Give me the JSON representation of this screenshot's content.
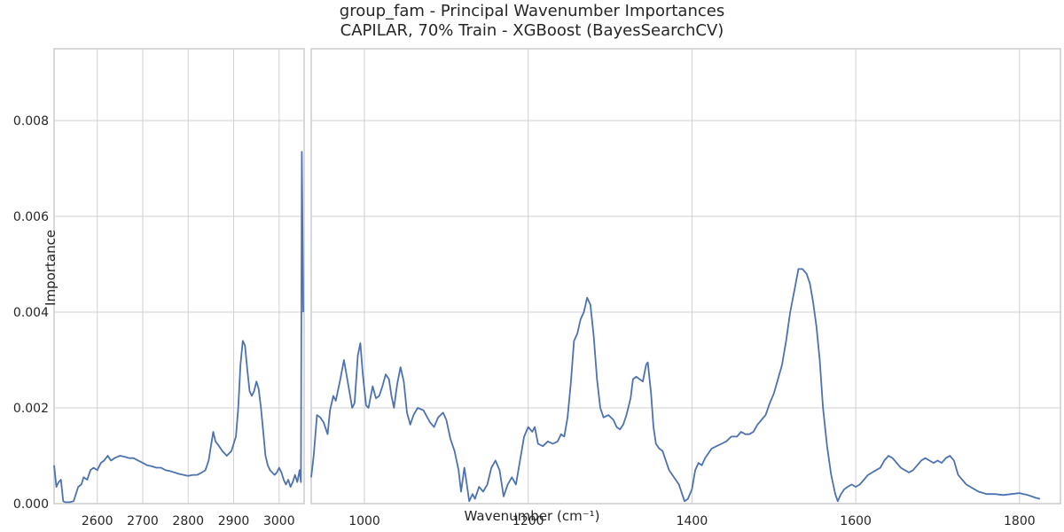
{
  "chart_data": {
    "type": "line",
    "title": "group_fam - Principal Wavenumber Importances",
    "subtitle": "CAPILAR, 70% Train - XGBoost (BayesSearchCV)",
    "xlabel": "Wavenumber (cm⁻¹)",
    "ylabel": "Importance",
    "ylim": [
      0,
      0.0095
    ],
    "grid": true,
    "line_color": "#4c72b0",
    "y_ticks": [
      "0.000",
      "0.002",
      "0.004",
      "0.006",
      "0.008"
    ],
    "panels": [
      {
        "xlim": [
          2505,
          3055
        ],
        "x_ticks": [
          "2600",
          "2700",
          "2800",
          "2900",
          "3000"
        ],
        "points": [
          [
            2505,
            0.0008
          ],
          [
            2510,
            0.00035
          ],
          [
            2515,
            0.00045
          ],
          [
            2520,
            0.0005
          ],
          [
            2525,
            5e-05
          ],
          [
            2530,
            3e-05
          ],
          [
            2540,
            3e-05
          ],
          [
            2548,
            5e-05
          ],
          [
            2558,
            0.00035
          ],
          [
            2565,
            0.0004
          ],
          [
            2570,
            0.00055
          ],
          [
            2578,
            0.0005
          ],
          [
            2585,
            0.0007
          ],
          [
            2592,
            0.00075
          ],
          [
            2600,
            0.0007
          ],
          [
            2608,
            0.00085
          ],
          [
            2615,
            0.0009
          ],
          [
            2623,
            0.001
          ],
          [
            2630,
            0.0009
          ],
          [
            2638,
            0.00095
          ],
          [
            2645,
            0.00098
          ],
          [
            2650,
            0.001
          ],
          [
            2660,
            0.00098
          ],
          [
            2670,
            0.00095
          ],
          [
            2680,
            0.00095
          ],
          [
            2690,
            0.0009
          ],
          [
            2700,
            0.00085
          ],
          [
            2710,
            0.0008
          ],
          [
            2720,
            0.00078
          ],
          [
            2730,
            0.00075
          ],
          [
            2740,
            0.00075
          ],
          [
            2750,
            0.0007
          ],
          [
            2760,
            0.00068
          ],
          [
            2770,
            0.00065
          ],
          [
            2780,
            0.00062
          ],
          [
            2790,
            0.0006
          ],
          [
            2800,
            0.00058
          ],
          [
            2810,
            0.0006
          ],
          [
            2820,
            0.0006
          ],
          [
            2830,
            0.00065
          ],
          [
            2838,
            0.0007
          ],
          [
            2845,
            0.0009
          ],
          [
            2850,
            0.0012
          ],
          [
            2855,
            0.0015
          ],
          [
            2860,
            0.0013
          ],
          [
            2868,
            0.0012
          ],
          [
            2875,
            0.0011
          ],
          [
            2885,
            0.001
          ],
          [
            2895,
            0.0011
          ],
          [
            2900,
            0.00125
          ],
          [
            2905,
            0.0014
          ],
          [
            2910,
            0.002
          ],
          [
            2915,
            0.0029
          ],
          [
            2920,
            0.0034
          ],
          [
            2925,
            0.0033
          ],
          [
            2930,
            0.0028
          ],
          [
            2935,
            0.00235
          ],
          [
            2940,
            0.00225
          ],
          [
            2945,
            0.00235
          ],
          [
            2950,
            0.00255
          ],
          [
            2955,
            0.0024
          ],
          [
            2960,
            0.002
          ],
          [
            2965,
            0.0015
          ],
          [
            2970,
            0.001
          ],
          [
            2975,
            0.0008
          ],
          [
            2980,
            0.0007
          ],
          [
            2990,
            0.0006
          ],
          [
            2995,
            0.00065
          ],
          [
            3000,
            0.00075
          ],
          [
            3005,
            0.00065
          ],
          [
            3010,
            0.0005
          ],
          [
            3015,
            0.0004
          ],
          [
            3020,
            0.0005
          ],
          [
            3025,
            0.00035
          ],
          [
            3030,
            0.00045
          ],
          [
            3035,
            0.0006
          ],
          [
            3040,
            0.00045
          ],
          [
            3045,
            0.0007
          ],
          [
            3048,
            0.00045
          ],
          [
            3050,
            0.00735
          ],
          [
            3053,
            0.004
          ]
        ]
      },
      {
        "xlim": [
          935,
          1850
        ],
        "x_ticks": [
          "1000",
          "1200",
          "1400",
          "1600",
          "1800"
        ],
        "points": [
          [
            935,
            0.00055
          ],
          [
            938,
            0.001
          ],
          [
            942,
            0.00185
          ],
          [
            946,
            0.0018
          ],
          [
            950,
            0.0017
          ],
          [
            955,
            0.00145
          ],
          [
            958,
            0.00195
          ],
          [
            962,
            0.00225
          ],
          [
            965,
            0.00215
          ],
          [
            970,
            0.00255
          ],
          [
            975,
            0.003
          ],
          [
            980,
            0.0025
          ],
          [
            985,
            0.002
          ],
          [
            988,
            0.0021
          ],
          [
            992,
            0.0031
          ],
          [
            995,
            0.00335
          ],
          [
            998,
            0.0027
          ],
          [
            1002,
            0.00205
          ],
          [
            1005,
            0.002
          ],
          [
            1010,
            0.00245
          ],
          [
            1014,
            0.0022
          ],
          [
            1018,
            0.00225
          ],
          [
            1022,
            0.00245
          ],
          [
            1026,
            0.0027
          ],
          [
            1030,
            0.0026
          ],
          [
            1033,
            0.00225
          ],
          [
            1036,
            0.002
          ],
          [
            1040,
            0.0025
          ],
          [
            1044,
            0.00285
          ],
          [
            1048,
            0.00255
          ],
          [
            1052,
            0.0019
          ],
          [
            1056,
            0.00165
          ],
          [
            1060,
            0.00185
          ],
          [
            1065,
            0.002
          ],
          [
            1072,
            0.00195
          ],
          [
            1080,
            0.0017
          ],
          [
            1085,
            0.0016
          ],
          [
            1090,
            0.0018
          ],
          [
            1096,
            0.0019
          ],
          [
            1100,
            0.00175
          ],
          [
            1105,
            0.00135
          ],
          [
            1110,
            0.0011
          ],
          [
            1115,
            0.0007
          ],
          [
            1118,
            0.00025
          ],
          [
            1122,
            0.00075
          ],
          [
            1125,
            0.0004
          ],
          [
            1128,
            5e-05
          ],
          [
            1132,
            0.0002
          ],
          [
            1135,
            0.0001
          ],
          [
            1140,
            0.00035
          ],
          [
            1145,
            0.00025
          ],
          [
            1150,
            0.0004
          ],
          [
            1155,
            0.00075
          ],
          [
            1160,
            0.0009
          ],
          [
            1165,
            0.0007
          ],
          [
            1170,
            0.00015
          ],
          [
            1175,
            0.0004
          ],
          [
            1180,
            0.00055
          ],
          [
            1185,
            0.0004
          ],
          [
            1190,
            0.0009
          ],
          [
            1195,
            0.0014
          ],
          [
            1200,
            0.0016
          ],
          [
            1205,
            0.0015
          ],
          [
            1208,
            0.0016
          ],
          [
            1212,
            0.00125
          ],
          [
            1218,
            0.0012
          ],
          [
            1224,
            0.0013
          ],
          [
            1230,
            0.00125
          ],
          [
            1236,
            0.0013
          ],
          [
            1240,
            0.00145
          ],
          [
            1244,
            0.0014
          ],
          [
            1248,
            0.0018
          ],
          [
            1252,
            0.0025
          ],
          [
            1256,
            0.0034
          ],
          [
            1260,
            0.00355
          ],
          [
            1264,
            0.00385
          ],
          [
            1268,
            0.004
          ],
          [
            1272,
            0.0043
          ],
          [
            1276,
            0.00415
          ],
          [
            1280,
            0.0035
          ],
          [
            1284,
            0.0026
          ],
          [
            1288,
            0.002
          ],
          [
            1292,
            0.0018
          ],
          [
            1298,
            0.00185
          ],
          [
            1304,
            0.00175
          ],
          [
            1308,
            0.0016
          ],
          [
            1312,
            0.00155
          ],
          [
            1316,
            0.00165
          ],
          [
            1320,
            0.00185
          ],
          [
            1325,
            0.0022
          ],
          [
            1328,
            0.0026
          ],
          [
            1332,
            0.00265
          ],
          [
            1336,
            0.0026
          ],
          [
            1340,
            0.00255
          ],
          [
            1344,
            0.0029
          ],
          [
            1346,
            0.00295
          ],
          [
            1350,
            0.0023
          ],
          [
            1353,
            0.0016
          ],
          [
            1356,
            0.00125
          ],
          [
            1360,
            0.00115
          ],
          [
            1364,
            0.0011
          ],
          [
            1368,
            0.0009
          ],
          [
            1372,
            0.0007
          ],
          [
            1376,
            0.0006
          ],
          [
            1380,
            0.0005
          ],
          [
            1384,
            0.0004
          ],
          [
            1388,
            0.0002
          ],
          [
            1391,
            5e-05
          ],
          [
            1395,
            0.0001
          ],
          [
            1400,
            0.0003
          ],
          [
            1404,
            0.0007
          ],
          [
            1408,
            0.00085
          ],
          [
            1412,
            0.0008
          ],
          [
            1416,
            0.00095
          ],
          [
            1420,
            0.00105
          ],
          [
            1424,
            0.00115
          ],
          [
            1430,
            0.0012
          ],
          [
            1436,
            0.00125
          ],
          [
            1442,
            0.0013
          ],
          [
            1448,
            0.0014
          ],
          [
            1455,
            0.0014
          ],
          [
            1460,
            0.0015
          ],
          [
            1465,
            0.00145
          ],
          [
            1470,
            0.00145
          ],
          [
            1475,
            0.0015
          ],
          [
            1480,
            0.00165
          ],
          [
            1485,
            0.00175
          ],
          [
            1490,
            0.00185
          ],
          [
            1495,
            0.0021
          ],
          [
            1500,
            0.0023
          ],
          [
            1505,
            0.0026
          ],
          [
            1510,
            0.0029
          ],
          [
            1515,
            0.0034
          ],
          [
            1520,
            0.004
          ],
          [
            1525,
            0.00445
          ],
          [
            1530,
            0.0049
          ],
          [
            1535,
            0.0049
          ],
          [
            1540,
            0.0048
          ],
          [
            1544,
            0.0046
          ],
          [
            1548,
            0.0042
          ],
          [
            1552,
            0.0037
          ],
          [
            1556,
            0.003
          ],
          [
            1560,
            0.002
          ],
          [
            1565,
            0.0012
          ],
          [
            1570,
            0.0006
          ],
          [
            1575,
            0.0002
          ],
          [
            1578,
            5e-05
          ],
          [
            1582,
            0.0002
          ],
          [
            1586,
            0.0003
          ],
          [
            1590,
            0.00035
          ],
          [
            1595,
            0.0004
          ],
          [
            1600,
            0.00035
          ],
          [
            1605,
            0.0004
          ],
          [
            1610,
            0.0005
          ],
          [
            1615,
            0.0006
          ],
          [
            1620,
            0.00065
          ],
          [
            1625,
            0.0007
          ],
          [
            1630,
            0.00075
          ],
          [
            1635,
            0.0009
          ],
          [
            1640,
            0.001
          ],
          [
            1645,
            0.00095
          ],
          [
            1650,
            0.00085
          ],
          [
            1655,
            0.00075
          ],
          [
            1660,
            0.0007
          ],
          [
            1665,
            0.00065
          ],
          [
            1670,
            0.0007
          ],
          [
            1675,
            0.0008
          ],
          [
            1680,
            0.0009
          ],
          [
            1685,
            0.00095
          ],
          [
            1690,
            0.0009
          ],
          [
            1695,
            0.00085
          ],
          [
            1700,
            0.0009
          ],
          [
            1705,
            0.00085
          ],
          [
            1710,
            0.00095
          ],
          [
            1715,
            0.001
          ],
          [
            1720,
            0.0009
          ],
          [
            1725,
            0.0006
          ],
          [
            1730,
            0.0005
          ],
          [
            1735,
            0.0004
          ],
          [
            1740,
            0.00035
          ],
          [
            1745,
            0.0003
          ],
          [
            1750,
            0.00025
          ],
          [
            1760,
            0.0002
          ],
          [
            1770,
            0.0002
          ],
          [
            1780,
            0.00018
          ],
          [
            1790,
            0.0002
          ],
          [
            1800,
            0.00022
          ],
          [
            1805,
            0.0002
          ],
          [
            1810,
            0.00018
          ],
          [
            1815,
            0.00015
          ],
          [
            1820,
            0.00012
          ],
          [
            1825,
            0.0001
          ]
        ]
      }
    ]
  }
}
